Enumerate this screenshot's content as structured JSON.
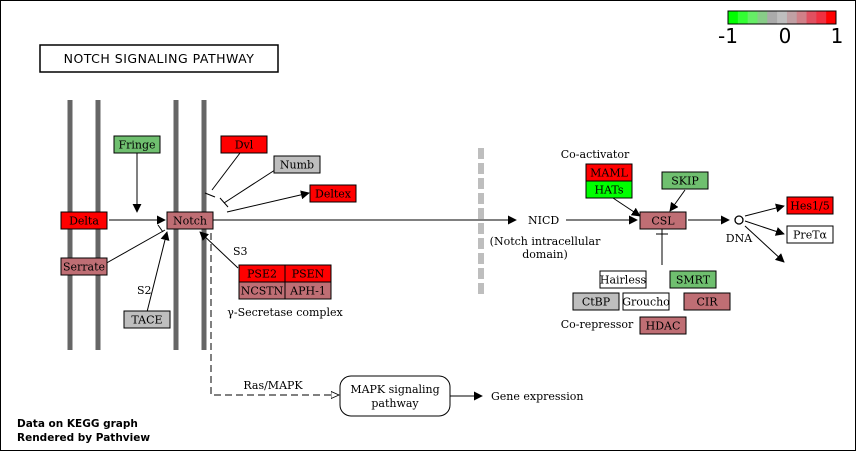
{
  "title": "NOTCH SIGNALING PATHWAY",
  "colors": {
    "red": "#ff0000",
    "pink": "#bf6e74",
    "green": "#6fbf6f",
    "bright_green": "#00ff00",
    "gray": "#bebebe",
    "white": "#ffffff",
    "membrane": "#666666"
  },
  "legend": {
    "min_label": "-1",
    "mid_label": "0",
    "max_label": "1",
    "colors": [
      "#00ff00",
      "#33ff33",
      "#66ee66",
      "#88cc88",
      "#aaaaaa",
      "#bebebe",
      "#c0a0a4",
      "#d08088",
      "#e05060",
      "#f03040",
      "#ff0000"
    ]
  },
  "genes": {
    "fringe": {
      "label": "Fringe",
      "color": "green"
    },
    "dvl": {
      "label": "Dvl",
      "color": "red"
    },
    "numb": {
      "label": "Numb",
      "color": "gray"
    },
    "deltex": {
      "label": "Deltex",
      "color": "red"
    },
    "delta": {
      "label": "Delta",
      "color": "red"
    },
    "notch": {
      "label": "Notch",
      "color": "pink"
    },
    "serrate": {
      "label": "Serrate",
      "color": "pink"
    },
    "tace": {
      "label": "TACE",
      "color": "gray"
    },
    "pse2": {
      "label": "PSE2",
      "color": "red"
    },
    "psen": {
      "label": "PSEN",
      "color": "red"
    },
    "ncstn": {
      "label": "NCSTN",
      "color": "pink"
    },
    "aph1": {
      "label": "APH-1",
      "color": "pink"
    },
    "maml": {
      "label": "MAML",
      "color": "red"
    },
    "hats": {
      "label": "HATs",
      "color": "bright_green"
    },
    "skip": {
      "label": "SKIP",
      "color": "green"
    },
    "csl": {
      "label": "CSL",
      "color": "pink"
    },
    "hes": {
      "label": "Hes1/5",
      "color": "red"
    },
    "pret": {
      "label": "PreTα",
      "color": "white"
    },
    "hairless": {
      "label": "Hairless",
      "color": "white"
    },
    "smrt": {
      "label": "SMRT",
      "color": "green"
    },
    "ctbp": {
      "label": "CtBP",
      "color": "gray"
    },
    "groucho": {
      "label": "Groucho",
      "color": "white"
    },
    "cir": {
      "label": "CIR",
      "color": "pink"
    },
    "hdac": {
      "label": "HDAC",
      "color": "pink"
    }
  },
  "labels": {
    "s2": "S2",
    "s3": "S3",
    "gamma_secretase": "γ-Secretase complex",
    "nicd": "NICD",
    "nicd_desc_1": "(Notch intracellular",
    "nicd_desc_2": "domain)",
    "coactivator": "Co-activator",
    "corepressor": "Co-repressor",
    "dna": "DNA",
    "ras_mapk": "Ras/MAPK",
    "mapk_1": "MAPK signaling",
    "mapk_2": "pathway",
    "gene_expression": "Gene expression"
  },
  "credits": {
    "line1": "Data on KEGG graph",
    "line2": "Rendered by Pathview"
  }
}
